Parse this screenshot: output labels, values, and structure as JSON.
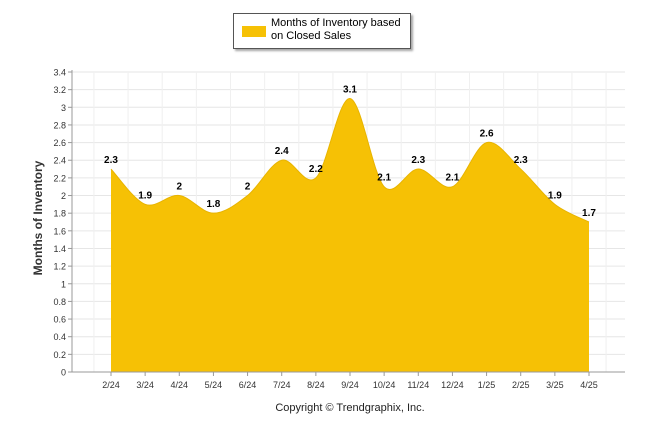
{
  "legend": {
    "label": "Months of Inventory based on Closed Sales",
    "color": "#f6c105"
  },
  "footer": {
    "copyright": "Copyright © Trendgraphix, Inc."
  },
  "chart_data": {
    "type": "area",
    "title": "",
    "xlabel": "",
    "ylabel": "Months of Inventory",
    "categories": [
      "2/24",
      "3/24",
      "4/24",
      "5/24",
      "6/24",
      "7/24",
      "8/24",
      "9/24",
      "10/24",
      "11/24",
      "12/24",
      "1/25",
      "2/25",
      "3/25",
      "4/25"
    ],
    "series": [
      {
        "name": "Months of Inventory based on Closed Sales",
        "values": [
          2.3,
          1.9,
          2,
          1.8,
          2,
          2.4,
          2.2,
          3.1,
          2.1,
          2.3,
          2.1,
          2.6,
          2.3,
          1.9,
          1.7
        ],
        "color": "#f6c105"
      }
    ],
    "data_labels": [
      "2.3",
      "1.9",
      "2",
      "1.8",
      "2",
      "2.4",
      "2.2",
      "3.1",
      "2.1",
      "2.3",
      "2.1",
      "2.6",
      "2.3",
      "1.9",
      "1.7"
    ],
    "ylim": [
      0,
      3.4
    ],
    "y_ticks": [
      "0",
      "0.2",
      "0.4",
      "0.6",
      "0.8",
      "1",
      "1.2",
      "1.4",
      "1.6",
      "1.8",
      "2",
      "2.2",
      "2.4",
      "2.6",
      "2.8",
      "3",
      "3.2",
      "3.4"
    ],
    "grid": true,
    "legend_position": "top-center"
  }
}
